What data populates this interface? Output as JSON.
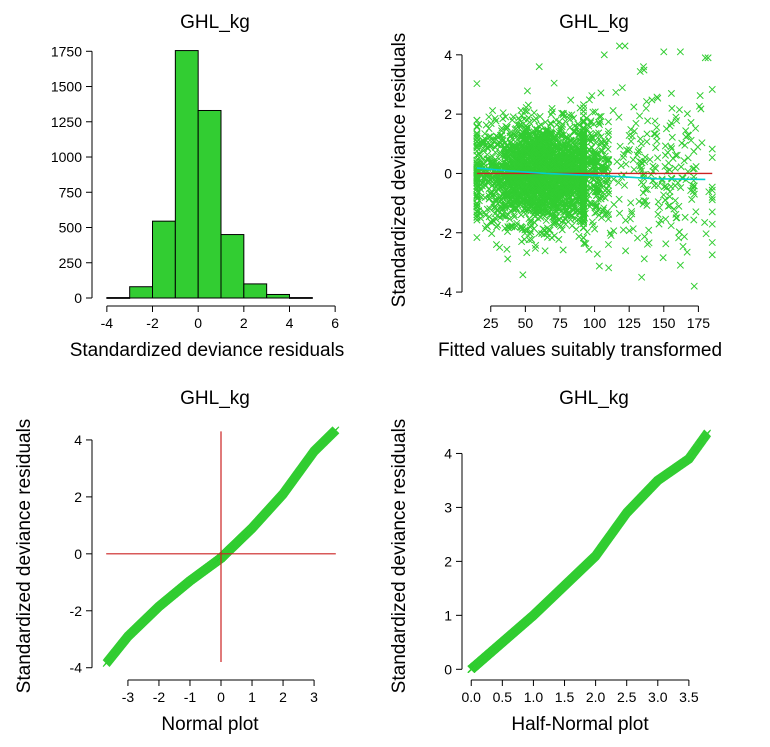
{
  "colors": {
    "bar_fill": "#32cd32",
    "points": "#32cd32",
    "ref_line": "#cc2222",
    "smooth": "#00ced1",
    "axis": "#000000"
  },
  "chart_data": [
    {
      "type": "bar",
      "title": "GHL_kg",
      "xlabel": "Standardized deviance residuals",
      "ylabel": "",
      "xlim": [
        -4.3,
        6.3
      ],
      "ylim": [
        0,
        1830
      ],
      "xticks": [
        -4,
        -2,
        0,
        2,
        4,
        6
      ],
      "yticks": [
        0,
        250,
        500,
        750,
        1000,
        1250,
        1500,
        1750
      ],
      "bins": [
        {
          "from": -4,
          "to": -3,
          "value": 3
        },
        {
          "from": -3,
          "to": -2,
          "value": 80
        },
        {
          "from": -2,
          "to": -1,
          "value": 545
        },
        {
          "from": -1,
          "to": 0,
          "value": 1755
        },
        {
          "from": 0,
          "to": 1,
          "value": 1330
        },
        {
          "from": 1,
          "to": 2,
          "value": 450
        },
        {
          "from": 2,
          "to": 3,
          "value": 100
        },
        {
          "from": 3,
          "to": 4,
          "value": 25
        },
        {
          "from": 4,
          "to": 5,
          "value": 3
        }
      ]
    },
    {
      "type": "scatter",
      "title": "GHL_kg",
      "xlabel": "Fitted values suitably transformed",
      "ylabel": "Standardized deviance residuals",
      "xlim": [
        10,
        187
      ],
      "ylim": [
        -4.2,
        4.5
      ],
      "xticks": [
        25,
        50,
        75,
        100,
        125,
        150,
        175
      ],
      "yticks": [
        -4,
        -2,
        0,
        2,
        4
      ],
      "reference_line_y": 0,
      "smooth_line": [
        {
          "x": 15,
          "y": 0.18
        },
        {
          "x": 40,
          "y": 0.08
        },
        {
          "x": 65,
          "y": 0.0
        },
        {
          "x": 90,
          "y": -0.05
        },
        {
          "x": 115,
          "y": -0.1
        },
        {
          "x": 145,
          "y": -0.18
        },
        {
          "x": 180,
          "y": -0.2
        }
      ],
      "clusters": [
        {
          "x_from": 15,
          "x_to": 92,
          "x_center": 62,
          "count": 2600,
          "y_sd": 0.85
        },
        {
          "x_from": 92,
          "x_to": 110,
          "x_center": 100,
          "count": 240,
          "y_sd": 1.0
        },
        {
          "x_from": 110,
          "x_to": 185,
          "x_center": 145,
          "count": 230,
          "y_sd": 1.35
        }
      ],
      "extreme_points": [
        {
          "x": 118,
          "y": 4.3
        },
        {
          "x": 122,
          "y": 4.3
        },
        {
          "x": 180,
          "y": 3.9
        },
        {
          "x": 182,
          "y": 3.9
        },
        {
          "x": 162,
          "y": 4.1
        },
        {
          "x": 150,
          "y": 4.1
        },
        {
          "x": 172,
          "y": -3.8
        },
        {
          "x": 134,
          "y": -3.5
        },
        {
          "x": 107,
          "y": 4.0
        },
        {
          "x": 60,
          "y": 3.6
        }
      ]
    },
    {
      "type": "scatter",
      "title": "GHL_kg",
      "xlabel": "Normal plot",
      "ylabel": "Standardized deviance residuals",
      "xlim": [
        -3.9,
        3.9
      ],
      "ylim": [
        -4.15,
        4.7
      ],
      "xticks": [
        -3,
        -2,
        -1,
        0,
        1,
        2,
        3
      ],
      "yticks": [
        -4,
        -2,
        0,
        2,
        4
      ],
      "reference_lines": {
        "x": 0,
        "y": 0
      },
      "quantile_curve": [
        {
          "theoretical": -3.7,
          "residual": -3.85
        },
        {
          "theoretical": -3.0,
          "residual": -2.9
        },
        {
          "theoretical": -2.0,
          "residual": -1.85
        },
        {
          "theoretical": -1.0,
          "residual": -0.95
        },
        {
          "theoretical": 0.0,
          "residual": -0.15
        },
        {
          "theoretical": 1.0,
          "residual": 0.9
        },
        {
          "theoretical": 2.0,
          "residual": 2.1
        },
        {
          "theoretical": 3.0,
          "residual": 3.6
        },
        {
          "theoretical": 3.7,
          "residual": 4.35
        }
      ]
    },
    {
      "type": "scatter",
      "title": "GHL_kg",
      "xlabel": "Half-Normal plot",
      "ylabel": "Standardized deviance residuals",
      "xlim": [
        -0.02,
        3.92
      ],
      "ylim": [
        -0.05,
        4.62
      ],
      "xticks": [
        0.0,
        0.5,
        1.0,
        1.5,
        2.0,
        2.5,
        3.0,
        3.5
      ],
      "yticks": [
        0,
        1,
        2,
        3,
        4
      ],
      "quantile_curve": [
        {
          "theoretical": 0.0,
          "residual": 0.0
        },
        {
          "theoretical": 0.5,
          "residual": 0.5
        },
        {
          "theoretical": 1.0,
          "residual": 1.0
        },
        {
          "theoretical": 1.5,
          "residual": 1.55
        },
        {
          "theoretical": 2.0,
          "residual": 2.1
        },
        {
          "theoretical": 2.5,
          "residual": 2.9
        },
        {
          "theoretical": 3.0,
          "residual": 3.5
        },
        {
          "theoretical": 3.5,
          "residual": 3.9
        },
        {
          "theoretical": 3.8,
          "residual": 4.38
        }
      ]
    }
  ]
}
